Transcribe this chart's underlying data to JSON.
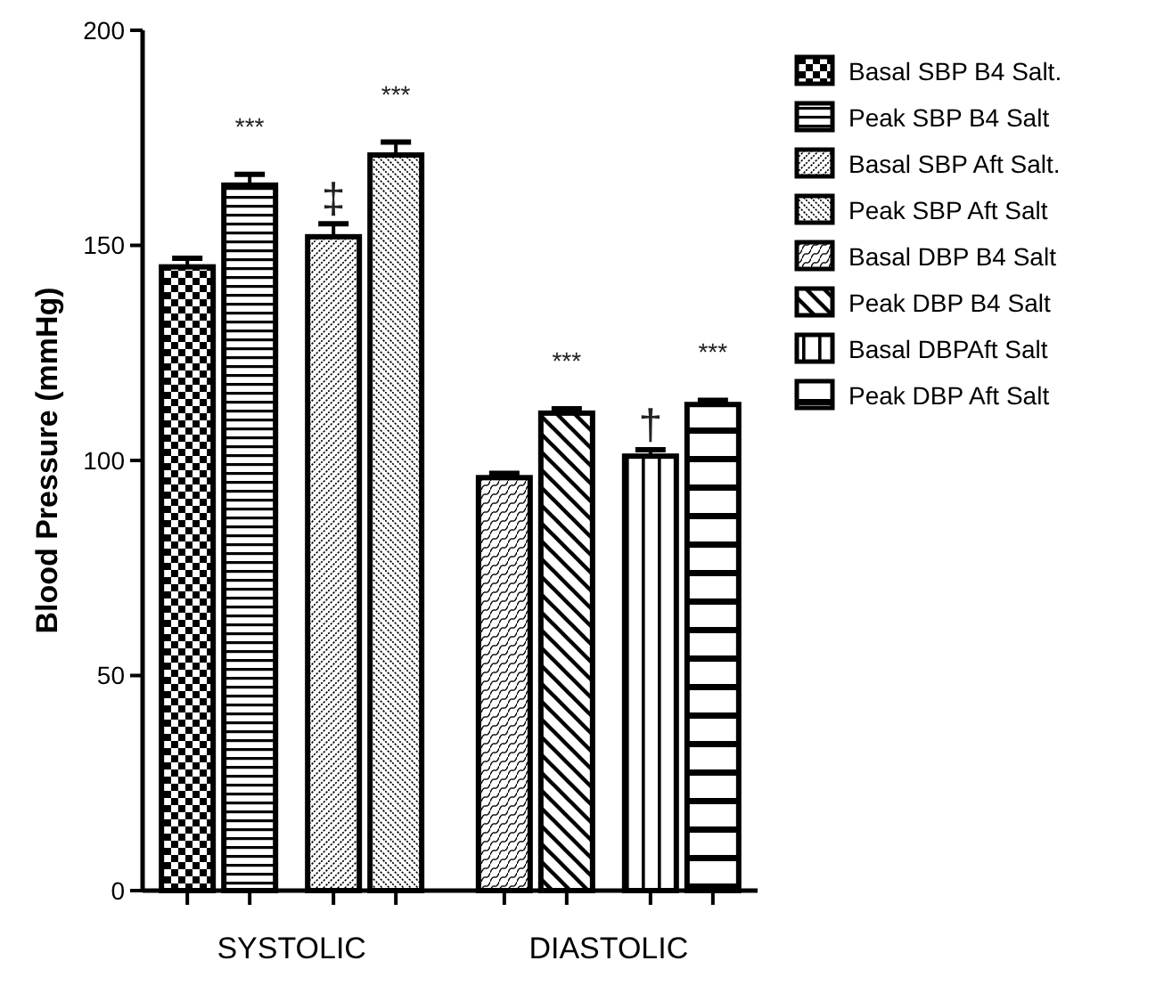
{
  "chart_data": {
    "type": "bar",
    "ylabel": "Blood Pressure (mmHg)",
    "categories": [
      "SYSTOLIC",
      "DIASTOLIC"
    ],
    "ylim": [
      0,
      200
    ],
    "yticks": [
      0,
      50,
      100,
      150,
      200
    ],
    "legend": "right",
    "series": [
      {
        "name": "Basal SBP B4 Salt.",
        "color": "#000000",
        "values": [
          145,
          null
        ],
        "errors": [
          2,
          null
        ]
      },
      {
        "name": "Peak SBP B4 Salt",
        "color": "#000000",
        "values": [
          164,
          null
        ],
        "errors": [
          2.5,
          null
        ]
      },
      {
        "name": "Basal SBP Aft Salt.",
        "color": "#000000",
        "values": [
          152,
          null
        ],
        "errors": [
          3,
          null
        ]
      },
      {
        "name": "Peak SBP Aft Salt",
        "color": "#000000",
        "values": [
          171,
          null
        ],
        "errors": [
          3,
          null
        ]
      },
      {
        "name": "Basal DBP B4 Salt",
        "color": "#000000",
        "values": [
          null,
          96
        ],
        "errors": [
          null,
          1
        ]
      },
      {
        "name": "Peak DBP B4 Salt",
        "color": "#000000",
        "values": [
          null,
          111
        ],
        "errors": [
          null,
          1
        ]
      },
      {
        "name": "Basal DBPAft Salt",
        "color": "#000000",
        "values": [
          null,
          101
        ],
        "errors": [
          null,
          1.5
        ]
      },
      {
        "name": "Peak DBP Aft Salt",
        "color": "#000000",
        "values": [
          null,
          113
        ],
        "errors": [
          null,
          1
        ]
      }
    ],
    "annotations": [
      "***",
      "‡",
      "***",
      "***",
      "†",
      "***"
    ]
  }
}
